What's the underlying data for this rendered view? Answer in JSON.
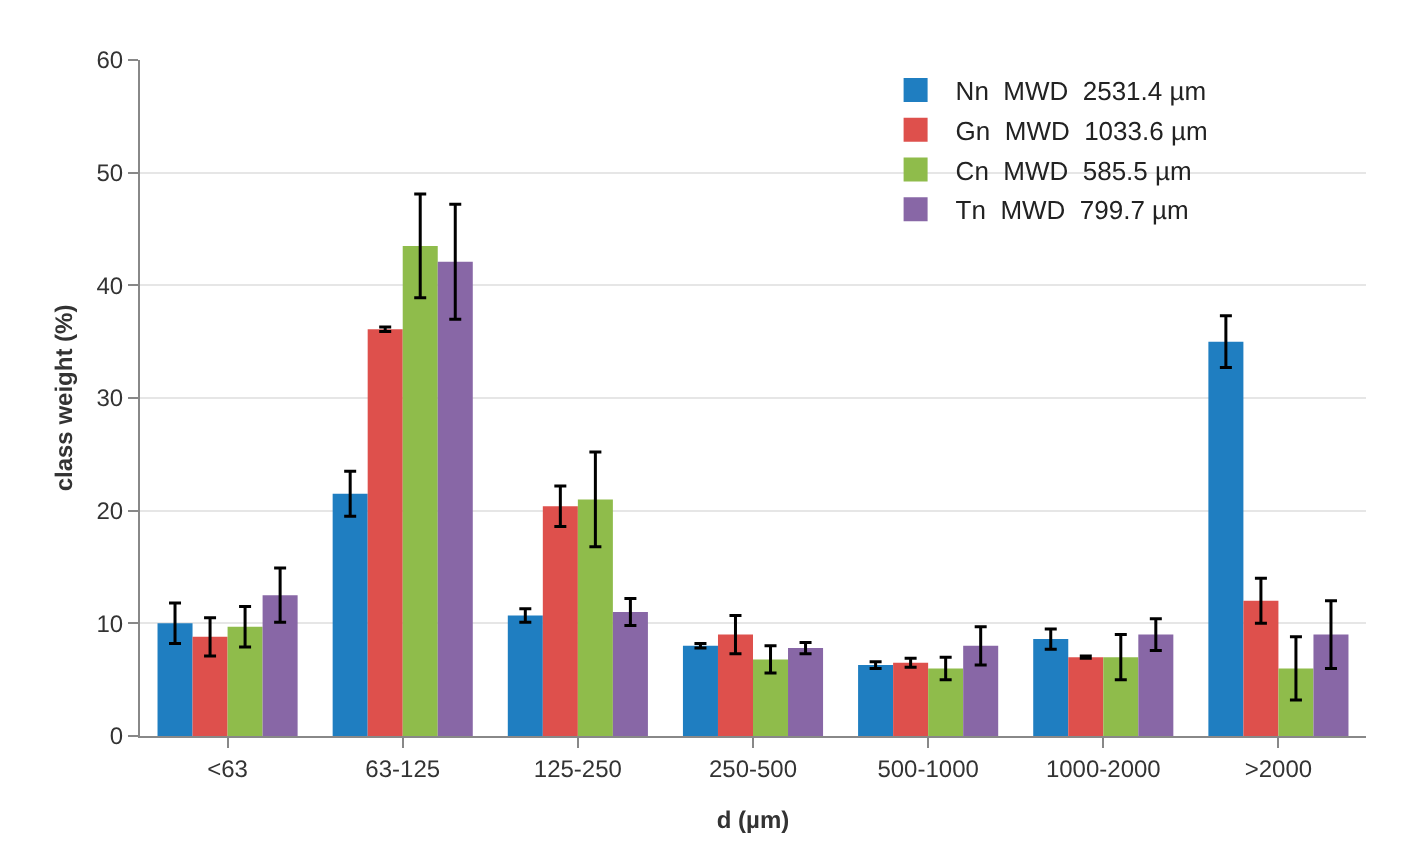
{
  "chart_data": {
    "type": "bar",
    "xlabel": "d (µm)",
    "ylabel": "class weight (%)",
    "categories": [
      "<63",
      "63-125",
      "125-250",
      "250-500",
      "500-1000",
      "1000-2000",
      ">2000"
    ],
    "series": [
      {
        "name": "Nn  MWD  2531.4 µm",
        "color": "#1f7ec1",
        "values": [
          10,
          21.5,
          10.7,
          8,
          6.3,
          8.6,
          35
        ],
        "errors": [
          1.8,
          2,
          0.6,
          0.2,
          0.3,
          0.9,
          2.3
        ]
      },
      {
        "name": "Gn  MWD  1033.6 µm",
        "color": "#de504c",
        "values": [
          8.8,
          36.1,
          20.4,
          9,
          6.5,
          7,
          12
        ],
        "errors": [
          1.7,
          0.2,
          1.8,
          1.7,
          0.4,
          0.1,
          2
        ]
      },
      {
        "name": "Cn  MWD  585.5 µm",
        "color": "#8fbc4b",
        "values": [
          9.7,
          43.5,
          21,
          6.8,
          6,
          7,
          6
        ],
        "errors": [
          1.8,
          4.6,
          4.2,
          1.2,
          1,
          2,
          2.8
        ]
      },
      {
        "name": "Tn  MWD  799.7 µm",
        "color": "#8867a6",
        "values": [
          12.5,
          42.1,
          11,
          7.8,
          8,
          9,
          9
        ],
        "errors": [
          2.4,
          5.1,
          1.2,
          0.5,
          1.7,
          1.4,
          3
        ]
      }
    ],
    "ylim": [
      0,
      60
    ],
    "yticks": [
      0,
      10,
      20,
      30,
      40,
      50,
      60
    ],
    "grid": "y",
    "legend": "top right"
  }
}
